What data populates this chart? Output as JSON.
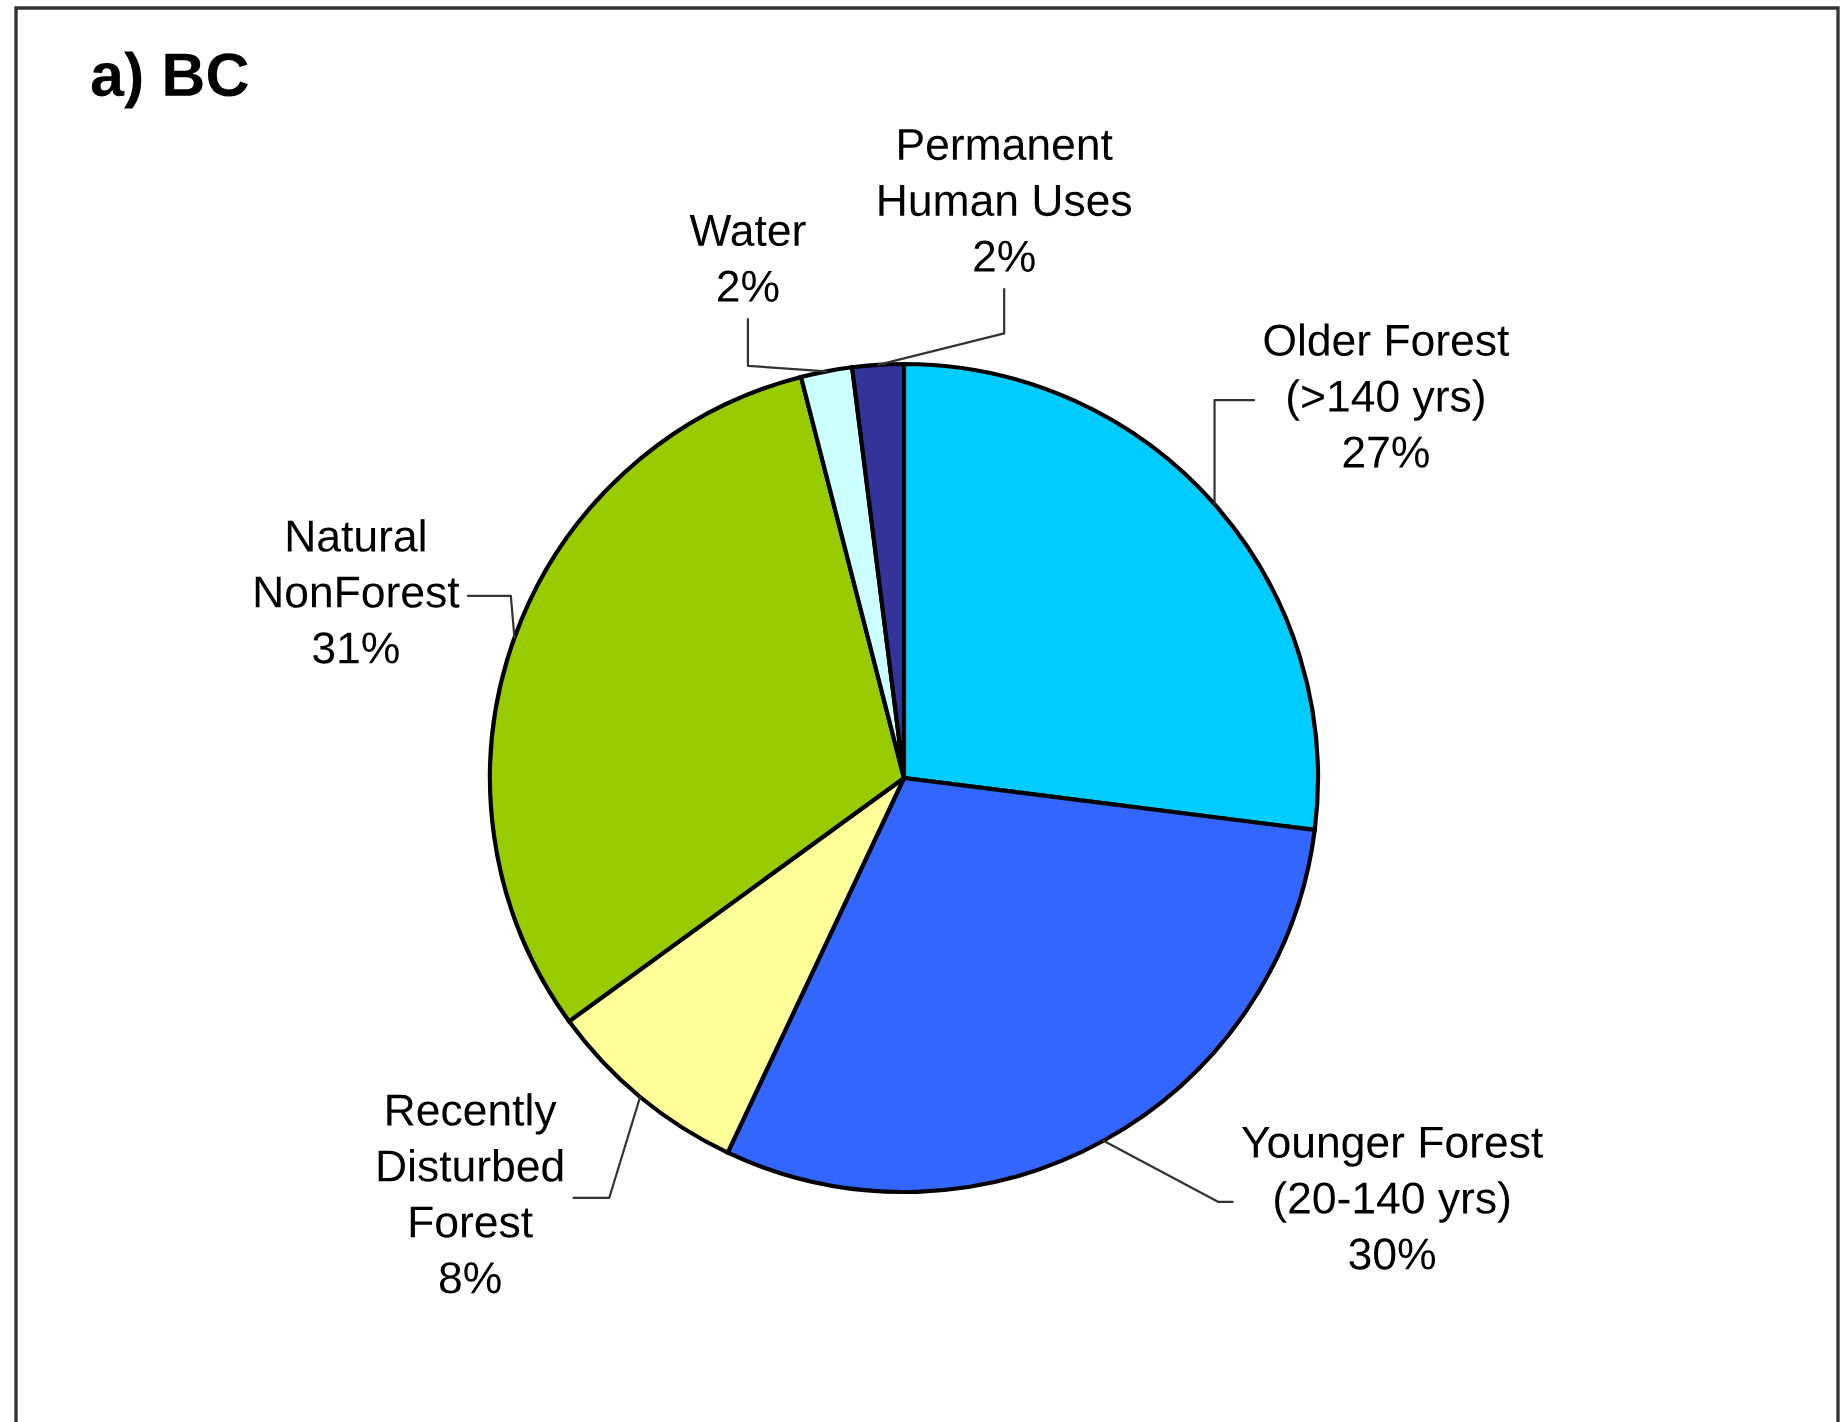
{
  "chart_data": {
    "type": "pie",
    "title": "a) BC",
    "categories": [
      "Older Forest\n(>140 yrs)",
      "Younger Forest\n(20-140 yrs)",
      "Recently\nDisturbed\nForest",
      "Natural\nNonForest",
      "Water",
      "Permanent\nHuman Uses"
    ],
    "values": [
      27,
      30,
      8,
      31,
      2,
      2
    ],
    "colors": [
      "#00ccff",
      "#3366ff",
      "#ffff99",
      "#99cc00",
      "#ccffff",
      "#333399"
    ],
    "value_labels": [
      "27%",
      "30%",
      "8%",
      "31%",
      "2%",
      "2%"
    ]
  }
}
